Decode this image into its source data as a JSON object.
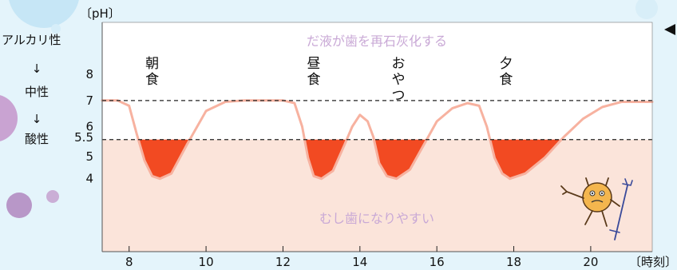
{
  "chart_data": {
    "type": "line",
    "y_unit_label": "〔pH〕",
    "x_unit_label": "〔時刻〕",
    "xlim": [
      7.3,
      21.6
    ],
    "ylim": [
      1.2,
      10.0
    ],
    "x_ticks": [
      8,
      10,
      12,
      14,
      16,
      18,
      20
    ],
    "y_ticks": [
      {
        "value": 8,
        "label": "8"
      },
      {
        "value": 7,
        "label": "7"
      },
      {
        "value": 6,
        "label": "6"
      },
      {
        "value": 5.5,
        "label": "5.5"
      },
      {
        "value": 5,
        "label": "5"
      },
      {
        "value": 4,
        "label": "4"
      }
    ],
    "reference_lines": [
      {
        "y": 7.0,
        "style": "dashed"
      },
      {
        "y": 5.5,
        "style": "dashed"
      }
    ],
    "side_scale": {
      "top": "アルカリ性",
      "middle": "中性",
      "bottom": "酸性",
      "arrow": "↓"
    },
    "zone_labels": {
      "upper": "だ液が歯を再石灰化する",
      "lower": "むし歯になりやすい"
    },
    "events": [
      {
        "x": 8.6,
        "label": "朝食"
      },
      {
        "x": 12.8,
        "label": "昼食"
      },
      {
        "x": 15.0,
        "label": "おやつ"
      },
      {
        "x": 17.8,
        "label": "夕食"
      }
    ],
    "series": [
      {
        "color": "#f7b2a0",
        "fill_below": "#f24a22",
        "threshold": 5.5,
        "x": [
          7.3,
          7.7,
          8.0,
          8.2,
          8.4,
          8.6,
          8.8,
          9.1,
          9.5,
          10.0,
          10.5,
          11.0,
          11.5,
          12.0,
          12.3,
          12.5,
          12.65,
          12.8,
          13.0,
          13.3,
          13.6,
          13.8,
          14.0,
          14.2,
          14.35,
          14.5,
          14.7,
          14.95,
          15.3,
          15.7,
          16.0,
          16.4,
          16.8,
          17.1,
          17.3,
          17.5,
          17.7,
          17.9,
          18.3,
          18.8,
          19.3,
          19.8,
          20.3,
          20.8,
          21.3,
          21.6
        ],
        "y": [
          7.0,
          7.0,
          6.8,
          5.7,
          4.7,
          4.1,
          4.0,
          4.2,
          5.3,
          6.6,
          6.95,
          7.0,
          7.0,
          7.0,
          6.9,
          6.0,
          4.8,
          4.1,
          4.0,
          4.3,
          5.3,
          6.0,
          6.45,
          6.2,
          5.6,
          4.6,
          4.1,
          4.0,
          4.35,
          5.4,
          6.2,
          6.7,
          6.9,
          6.8,
          6.0,
          4.8,
          4.2,
          4.0,
          4.2,
          4.8,
          5.6,
          6.3,
          6.75,
          6.95,
          6.95,
          6.95
        ]
      }
    ]
  },
  "icons": {
    "prev_arrow": "triangle-left-icon",
    "character": "tooth-germ-devil-icon"
  },
  "colors": {
    "acid_zone": "#fbe4da",
    "neutral_zone": "#ffffff",
    "acid_fill": "#f24a22",
    "curve": "#f7b2a0",
    "zone_text": "#c9a9d6",
    "axis_text": "#111111",
    "page_bg": "#e4f4fb"
  }
}
